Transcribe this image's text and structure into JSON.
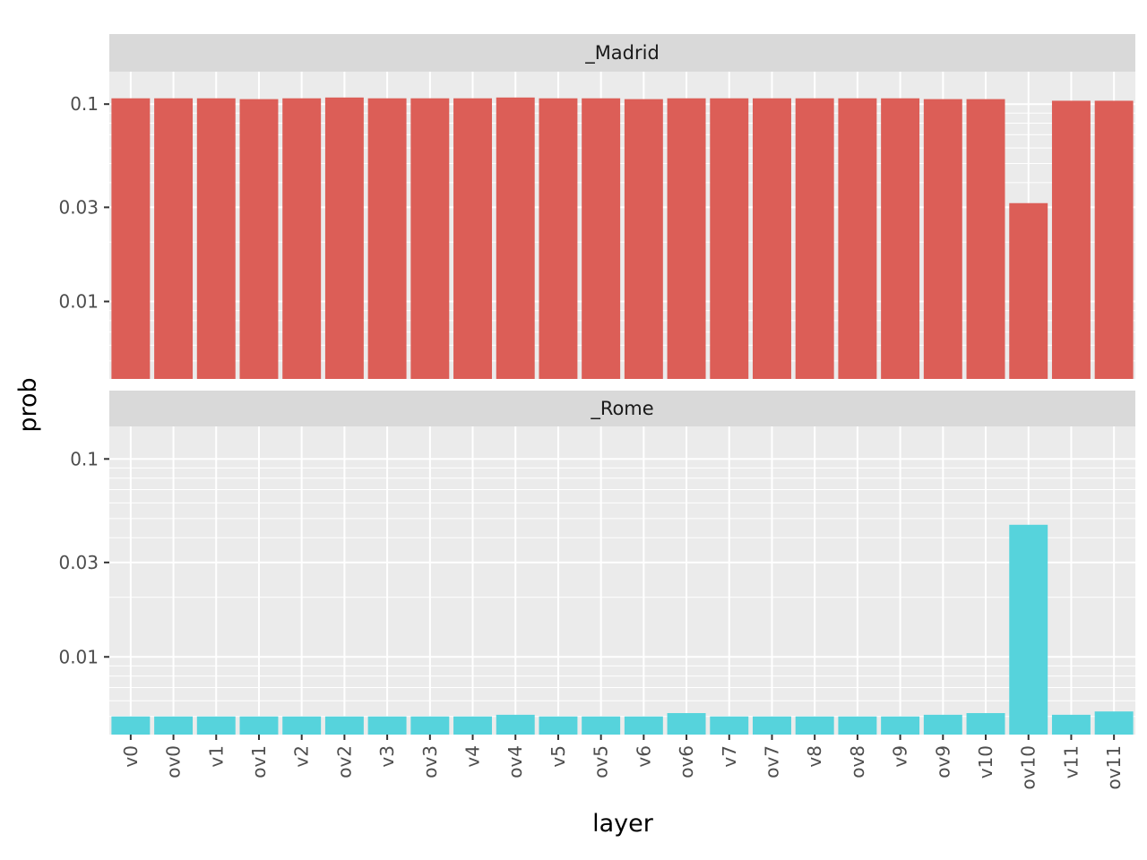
{
  "chart_data": {
    "type": "bar",
    "xlabel": "layer",
    "ylabel": "prob",
    "y_scale": "log10",
    "ylim": [
      0.00405,
      0.146
    ],
    "y_ticks": [
      0.01,
      0.03,
      0.1
    ],
    "y_tick_labels": [
      "0.01",
      "0.03",
      "0.1"
    ],
    "grid": true,
    "facet_layout": "stacked vertically, shared x axis",
    "categories": [
      "v0",
      "ov0",
      "v1",
      "ov1",
      "v2",
      "ov2",
      "v3",
      "ov3",
      "v4",
      "ov4",
      "v5",
      "ov5",
      "v6",
      "ov6",
      "v7",
      "ov7",
      "v8",
      "ov8",
      "v9",
      "ov9",
      "v10",
      "ov10",
      "v11",
      "ov11"
    ],
    "series": [
      {
        "name": "_Madrid",
        "color": "#dc5e57",
        "values": [
          0.107,
          0.107,
          0.107,
          0.106,
          0.107,
          0.108,
          0.107,
          0.107,
          0.107,
          0.108,
          0.107,
          0.107,
          0.106,
          0.107,
          0.107,
          0.107,
          0.107,
          0.107,
          0.107,
          0.106,
          0.106,
          0.0315,
          0.104,
          0.104
        ]
      },
      {
        "name": "_Rome",
        "color": "#56d3dc",
        "values": [
          0.005,
          0.005,
          0.005,
          0.005,
          0.005,
          0.005,
          0.005,
          0.005,
          0.005,
          0.0051,
          0.005,
          0.005,
          0.005,
          0.0052,
          0.005,
          0.005,
          0.005,
          0.005,
          0.005,
          0.0051,
          0.0052,
          0.0465,
          0.0051,
          0.0053
        ]
      }
    ]
  }
}
